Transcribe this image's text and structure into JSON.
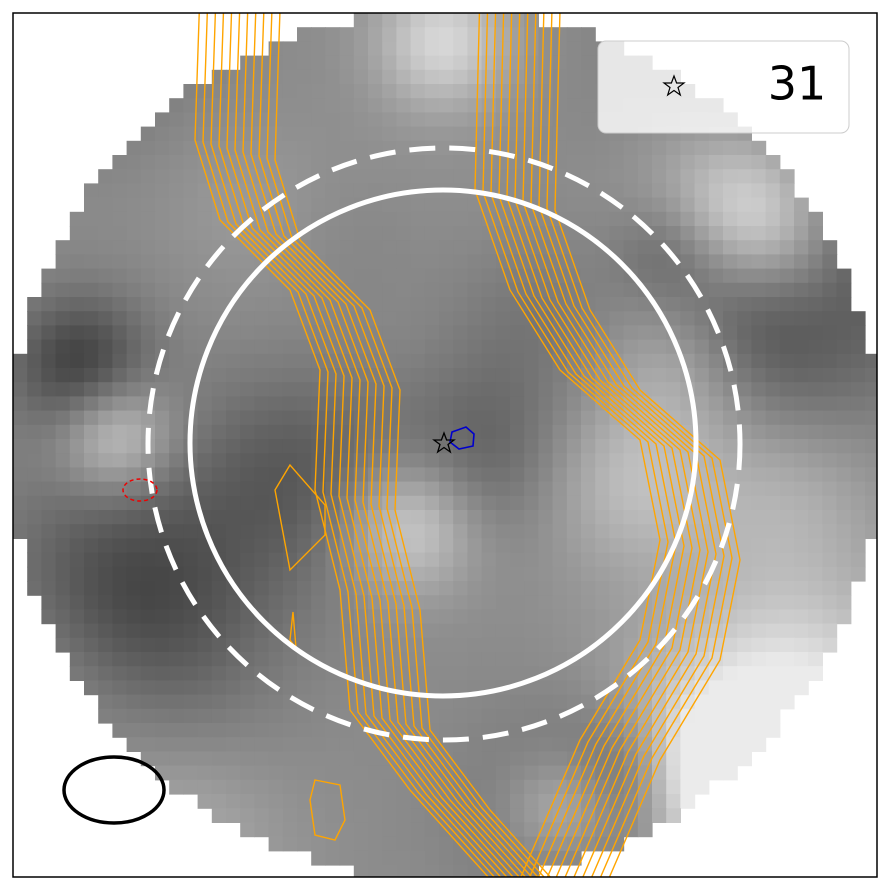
{
  "legend": {
    "label": "31"
  }
}
